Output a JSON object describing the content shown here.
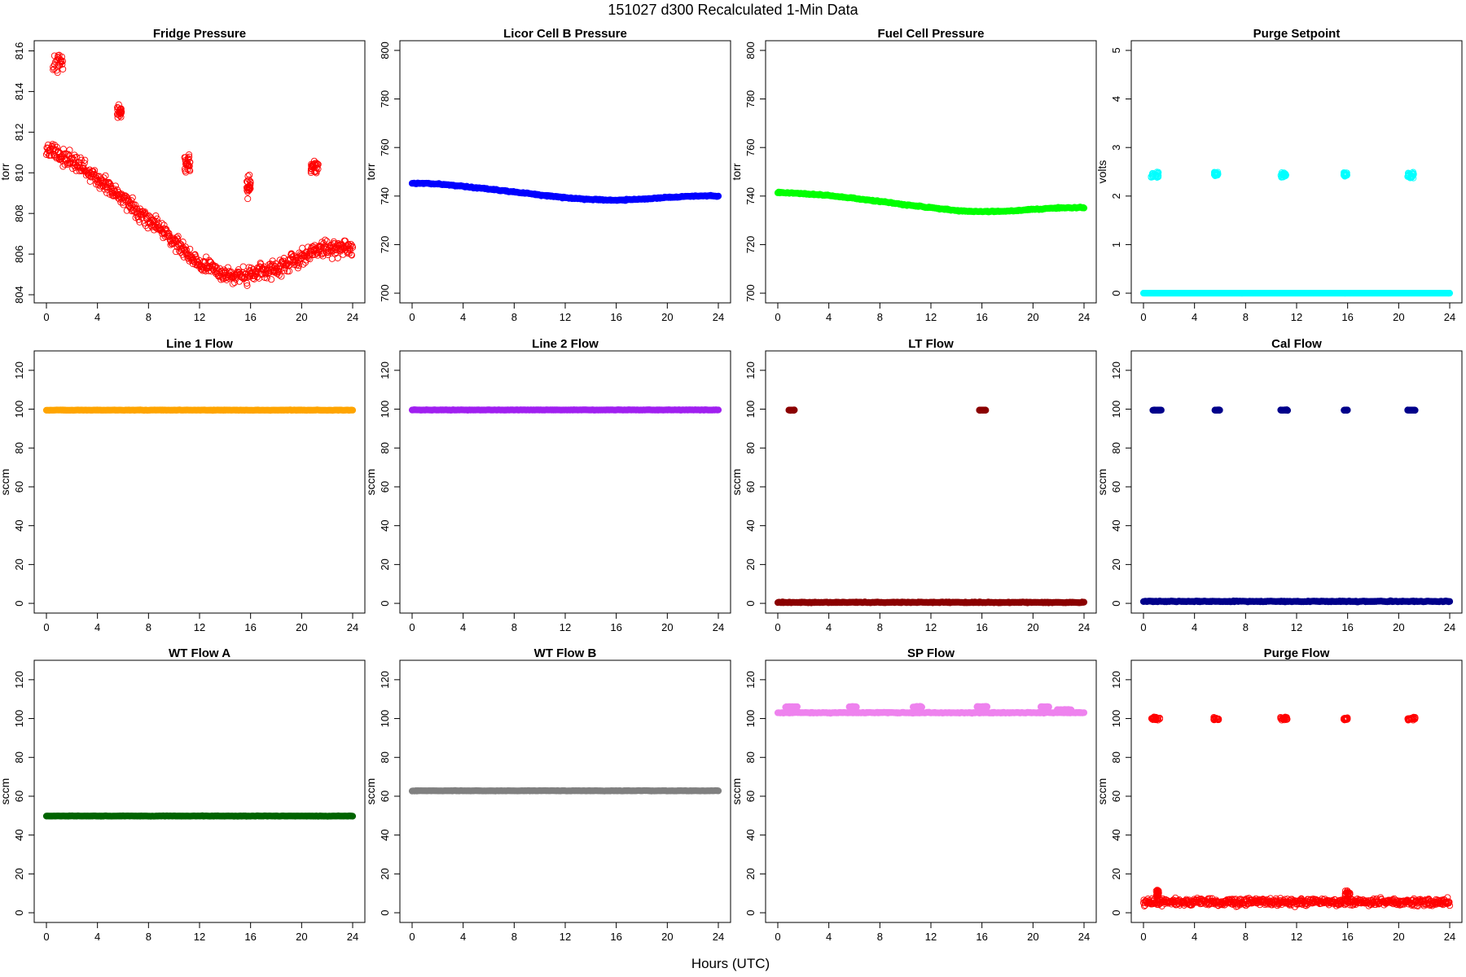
{
  "figure": {
    "title": "151027   d300   Recalculated 1-Min Data",
    "xlabel": "Hours (UTC)"
  },
  "chart_data": [
    {
      "type": "scatter",
      "title": "Fridge Pressure",
      "ylabel": "torr",
      "color": "#ff0000",
      "marker": "open",
      "xlim": [
        0,
        24
      ],
      "xticks": [
        0,
        4,
        8,
        12,
        16,
        20,
        24
      ],
      "ylim": [
        803.6,
        816.5
      ],
      "yticks": [
        804,
        806,
        808,
        810,
        812,
        814,
        816
      ],
      "series": [
        {
          "kind": "trend",
          "x": [
            0.0,
            1.3,
            3,
            5,
            7,
            9,
            10.5,
            12,
            14,
            15.8,
            16.2,
            18,
            20,
            21.5,
            24
          ],
          "y": [
            811.2,
            810.8,
            810.2,
            809.2,
            808.2,
            807.2,
            806.4,
            805.5,
            805.0,
            804.9,
            805.0,
            805.3,
            805.8,
            806.3,
            806.2
          ],
          "spread": 0.35
        },
        {
          "kind": "cluster",
          "x0": 0.5,
          "x1": 1.3,
          "y": 815.5,
          "spread": 0.4
        },
        {
          "kind": "cluster",
          "x0": 5.55,
          "x1": 5.9,
          "y": 813.0,
          "spread": 0.25
        },
        {
          "kind": "cluster",
          "x0": 10.8,
          "x1": 11.3,
          "y": 810.5,
          "spread": 0.45
        },
        {
          "kind": "cluster",
          "x0": 15.7,
          "x1": 16.0,
          "y": 809.3,
          "spread": 0.45
        },
        {
          "kind": "cluster",
          "x0": 20.7,
          "x1": 21.3,
          "y": 810.2,
          "spread": 0.4
        }
      ]
    },
    {
      "type": "scatter",
      "title": "Licor Cell B Pressure",
      "ylabel": "torr",
      "color": "#0000ff",
      "marker": "solid",
      "xlim": [
        0,
        24
      ],
      "xticks": [
        0,
        4,
        8,
        12,
        16,
        20,
        24
      ],
      "ylim": [
        696,
        804
      ],
      "yticks": [
        700,
        720,
        740,
        760,
        780,
        800
      ],
      "series": [
        {
          "kind": "trend",
          "x": [
            0,
            2,
            4,
            6,
            8,
            10,
            12,
            14,
            16,
            18,
            20,
            22,
            24
          ],
          "y": [
            745.4,
            745.0,
            744.0,
            742.9,
            741.7,
            740.5,
            739.3,
            738.6,
            738.3,
            738.7,
            739.4,
            740.0,
            740.1
          ],
          "spread": 0.2
        }
      ]
    },
    {
      "type": "scatter",
      "title": "Fuel Cell Pressure",
      "ylabel": "torr",
      "color": "#00ff00",
      "marker": "solid",
      "xlim": [
        0,
        24
      ],
      "xticks": [
        0,
        4,
        8,
        12,
        16,
        20,
        24
      ],
      "ylim": [
        696,
        804
      ],
      "yticks": [
        700,
        720,
        740,
        760,
        780,
        800
      ],
      "series": [
        {
          "kind": "trend",
          "x": [
            0,
            2,
            4,
            6,
            8,
            10,
            12,
            14,
            16,
            18,
            20,
            22,
            24
          ],
          "y": [
            741.5,
            741.0,
            740.2,
            739.0,
            737.8,
            736.4,
            735.2,
            734.0,
            733.5,
            733.8,
            734.5,
            735.1,
            735.3
          ],
          "spread": 0.2
        }
      ]
    },
    {
      "type": "scatter",
      "title": "Purge Setpoint",
      "ylabel": "volts",
      "color": "#00ffff",
      "marker": "open",
      "xlim": [
        0,
        24
      ],
      "xticks": [
        0,
        4,
        8,
        12,
        16,
        20,
        24
      ],
      "ylim": [
        -0.2,
        5.2
      ],
      "yticks": [
        0,
        1,
        2,
        3,
        4,
        5
      ],
      "series": [
        {
          "kind": "flat",
          "x0": 0,
          "x1": 24,
          "y": 0.0,
          "spread": 0.0
        },
        {
          "kind": "cluster",
          "x0": 0.6,
          "x1": 1.2,
          "y": 2.43,
          "spread": 0.06
        },
        {
          "kind": "cluster",
          "x0": 5.55,
          "x1": 5.85,
          "y": 2.45,
          "spread": 0.04
        },
        {
          "kind": "cluster",
          "x0": 10.75,
          "x1": 11.2,
          "y": 2.44,
          "spread": 0.06
        },
        {
          "kind": "cluster",
          "x0": 15.7,
          "x1": 15.95,
          "y": 2.44,
          "spread": 0.04
        },
        {
          "kind": "cluster",
          "x0": 20.7,
          "x1": 21.2,
          "y": 2.43,
          "spread": 0.06
        }
      ]
    },
    {
      "type": "scatter",
      "title": "Line 1 Flow",
      "ylabel": "sccm",
      "color": "#ffa500",
      "marker": "solid",
      "xlim": [
        0,
        24
      ],
      "xticks": [
        0,
        4,
        8,
        12,
        16,
        20,
        24
      ],
      "ylim": [
        -5,
        130
      ],
      "yticks": [
        0,
        20,
        40,
        60,
        80,
        100,
        120
      ],
      "series": [
        {
          "kind": "flat",
          "x0": 0,
          "x1": 24,
          "y": 99.5,
          "spread": 0.1
        }
      ]
    },
    {
      "type": "scatter",
      "title": "Line 2 Flow",
      "ylabel": "sccm",
      "color": "#a020f0",
      "marker": "solid",
      "xlim": [
        0,
        24
      ],
      "xticks": [
        0,
        4,
        8,
        12,
        16,
        20,
        24
      ],
      "ylim": [
        -5,
        130
      ],
      "yticks": [
        0,
        20,
        40,
        60,
        80,
        100,
        120
      ],
      "series": [
        {
          "kind": "flat",
          "x0": 0,
          "x1": 24,
          "y": 99.6,
          "spread": 0.1
        }
      ]
    },
    {
      "type": "scatter",
      "title": "LT Flow",
      "ylabel": "sccm",
      "color": "#8b0000",
      "marker": "solid",
      "xlim": [
        0,
        24
      ],
      "xticks": [
        0,
        4,
        8,
        12,
        16,
        20,
        24
      ],
      "ylim": [
        -5,
        130
      ],
      "yticks": [
        0,
        20,
        40,
        60,
        80,
        100,
        120
      ],
      "series": [
        {
          "kind": "flat",
          "x0": 0,
          "x1": 24,
          "y": 0.5,
          "spread": 0.2
        },
        {
          "kind": "cluster",
          "x0": 0.8,
          "x1": 1.3,
          "y": 99.5,
          "spread": 0.1
        },
        {
          "kind": "cluster",
          "x0": 15.8,
          "x1": 16.3,
          "y": 99.5,
          "spread": 0.1
        }
      ]
    },
    {
      "type": "scatter",
      "title": "Cal Flow",
      "ylabel": "sccm",
      "color": "#00008b",
      "marker": "solid",
      "xlim": [
        0,
        24
      ],
      "xticks": [
        0,
        4,
        8,
        12,
        16,
        20,
        24
      ],
      "ylim": [
        -5,
        130
      ],
      "yticks": [
        0,
        20,
        40,
        60,
        80,
        100,
        120
      ],
      "series": [
        {
          "kind": "flat",
          "x0": 0,
          "x1": 24,
          "y": 1.0,
          "spread": 0.2
        },
        {
          "kind": "cluster",
          "x0": 0.7,
          "x1": 1.4,
          "y": 99.5,
          "spread": 0.1
        },
        {
          "kind": "cluster",
          "x0": 5.6,
          "x1": 6.0,
          "y": 99.5,
          "spread": 0.1
        },
        {
          "kind": "cluster",
          "x0": 10.7,
          "x1": 11.3,
          "y": 99.5,
          "spread": 0.1
        },
        {
          "kind": "cluster",
          "x0": 15.7,
          "x1": 16.0,
          "y": 99.5,
          "spread": 0.1
        },
        {
          "kind": "cluster",
          "x0": 20.7,
          "x1": 21.3,
          "y": 99.5,
          "spread": 0.1
        }
      ]
    },
    {
      "type": "scatter",
      "title": "WT Flow A",
      "ylabel": "sccm",
      "color": "#006400",
      "marker": "solid",
      "xlim": [
        0,
        24
      ],
      "xticks": [
        0,
        4,
        8,
        12,
        16,
        20,
        24
      ],
      "ylim": [
        -5,
        130
      ],
      "yticks": [
        0,
        20,
        40,
        60,
        80,
        100,
        120
      ],
      "series": [
        {
          "kind": "flat",
          "x0": 0,
          "x1": 24,
          "y": 49.8,
          "spread": 0.1
        }
      ]
    },
    {
      "type": "scatter",
      "title": "WT Flow B",
      "ylabel": "sccm",
      "color": "#808080",
      "marker": "solid",
      "xlim": [
        0,
        24
      ],
      "xticks": [
        0,
        4,
        8,
        12,
        16,
        20,
        24
      ],
      "ylim": [
        -5,
        130
      ],
      "yticks": [
        0,
        20,
        40,
        60,
        80,
        100,
        120
      ],
      "series": [
        {
          "kind": "flat",
          "x0": 0,
          "x1": 24,
          "y": 62.8,
          "spread": 0.1
        }
      ]
    },
    {
      "type": "scatter",
      "title": "SP Flow",
      "ylabel": "sccm",
      "color": "#ee82ee",
      "marker": "solid",
      "xlim": [
        0,
        24
      ],
      "xticks": [
        0,
        4,
        8,
        12,
        16,
        20,
        24
      ],
      "ylim": [
        -5,
        130
      ],
      "yticks": [
        0,
        20,
        40,
        60,
        80,
        100,
        120
      ],
      "series": [
        {
          "kind": "flat",
          "x0": 0,
          "x1": 24,
          "y": 103.0,
          "spread": 0.2
        },
        {
          "kind": "cluster",
          "x0": 0.6,
          "x1": 1.6,
          "y": 106.0,
          "spread": 0.2
        },
        {
          "kind": "cluster",
          "x0": 5.6,
          "x1": 6.2,
          "y": 106.0,
          "spread": 0.2
        },
        {
          "kind": "cluster",
          "x0": 10.6,
          "x1": 11.3,
          "y": 106.0,
          "spread": 0.2
        },
        {
          "kind": "cluster",
          "x0": 15.6,
          "x1": 16.4,
          "y": 106.0,
          "spread": 0.2
        },
        {
          "kind": "cluster",
          "x0": 20.6,
          "x1": 21.3,
          "y": 106.0,
          "spread": 0.2
        },
        {
          "kind": "cluster",
          "x0": 21.9,
          "x1": 23.0,
          "y": 104.5,
          "spread": 0.2
        }
      ]
    },
    {
      "type": "scatter",
      "title": "Purge Flow",
      "ylabel": "sccm",
      "color": "#ff0000",
      "marker": "open",
      "xlim": [
        0,
        24
      ],
      "xticks": [
        0,
        4,
        8,
        12,
        16,
        20,
        24
      ],
      "ylim": [
        -5,
        130
      ],
      "yticks": [
        0,
        20,
        40,
        60,
        80,
        100,
        120
      ],
      "series": [
        {
          "kind": "flat",
          "x0": 0,
          "x1": 24,
          "y": 5.5,
          "spread": 1.6
        },
        {
          "kind": "cluster",
          "x0": 0.6,
          "x1": 1.3,
          "y": 100.0,
          "spread": 0.7
        },
        {
          "kind": "cluster",
          "x0": 5.5,
          "x1": 5.9,
          "y": 99.8,
          "spread": 0.6
        },
        {
          "kind": "cluster",
          "x0": 10.7,
          "x1": 11.3,
          "y": 100.0,
          "spread": 0.6
        },
        {
          "kind": "cluster",
          "x0": 15.7,
          "x1": 16.0,
          "y": 99.8,
          "spread": 0.6
        },
        {
          "kind": "cluster",
          "x0": 20.7,
          "x1": 21.3,
          "y": 100.0,
          "spread": 0.6
        },
        {
          "kind": "cluster",
          "x0": 1.0,
          "x1": 1.2,
          "y": 10.0,
          "spread": 1.5
        },
        {
          "kind": "cluster",
          "x0": 15.8,
          "x1": 16.2,
          "y": 9.5,
          "spread": 1.5
        }
      ]
    }
  ]
}
